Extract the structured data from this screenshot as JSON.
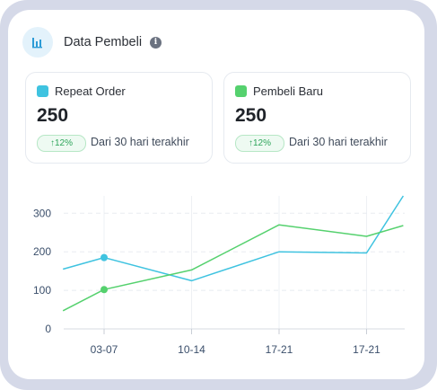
{
  "header": {
    "title": "Data Pembeli",
    "chart_icon": "bar-chart-icon",
    "info_icon": "info-icon"
  },
  "stats": [
    {
      "label": "Repeat Order",
      "value": "250",
      "change": "↑12%",
      "caption": "Dari 30 hari terakhir",
      "color": "#3fc3e0"
    },
    {
      "label": "Pembeli Baru",
      "value": "250",
      "change": "↑12%",
      "caption": "Dari 30 hari terakhir",
      "color": "#55d16e"
    }
  ],
  "chart_data": {
    "type": "line",
    "categories": [
      "03-07",
      "10-14",
      "17-21",
      "17-21"
    ],
    "yticks": [
      0,
      100,
      200,
      300
    ],
    "ylim": [
      0,
      345
    ],
    "grid": true,
    "series": [
      {
        "color": "#3fc3e0",
        "marker_index": 1,
        "points": [
          [
            -0.47,
            155
          ],
          [
            0,
            185
          ],
          [
            1,
            125
          ],
          [
            2,
            200
          ],
          [
            3,
            197
          ],
          [
            3.42,
            345
          ]
        ]
      },
      {
        "color": "#55d16e",
        "marker_index": 1,
        "points": [
          [
            -0.47,
            47
          ],
          [
            0,
            102
          ],
          [
            1,
            153
          ],
          [
            2,
            270
          ],
          [
            3,
            240
          ],
          [
            3.42,
            268
          ]
        ]
      }
    ]
  }
}
